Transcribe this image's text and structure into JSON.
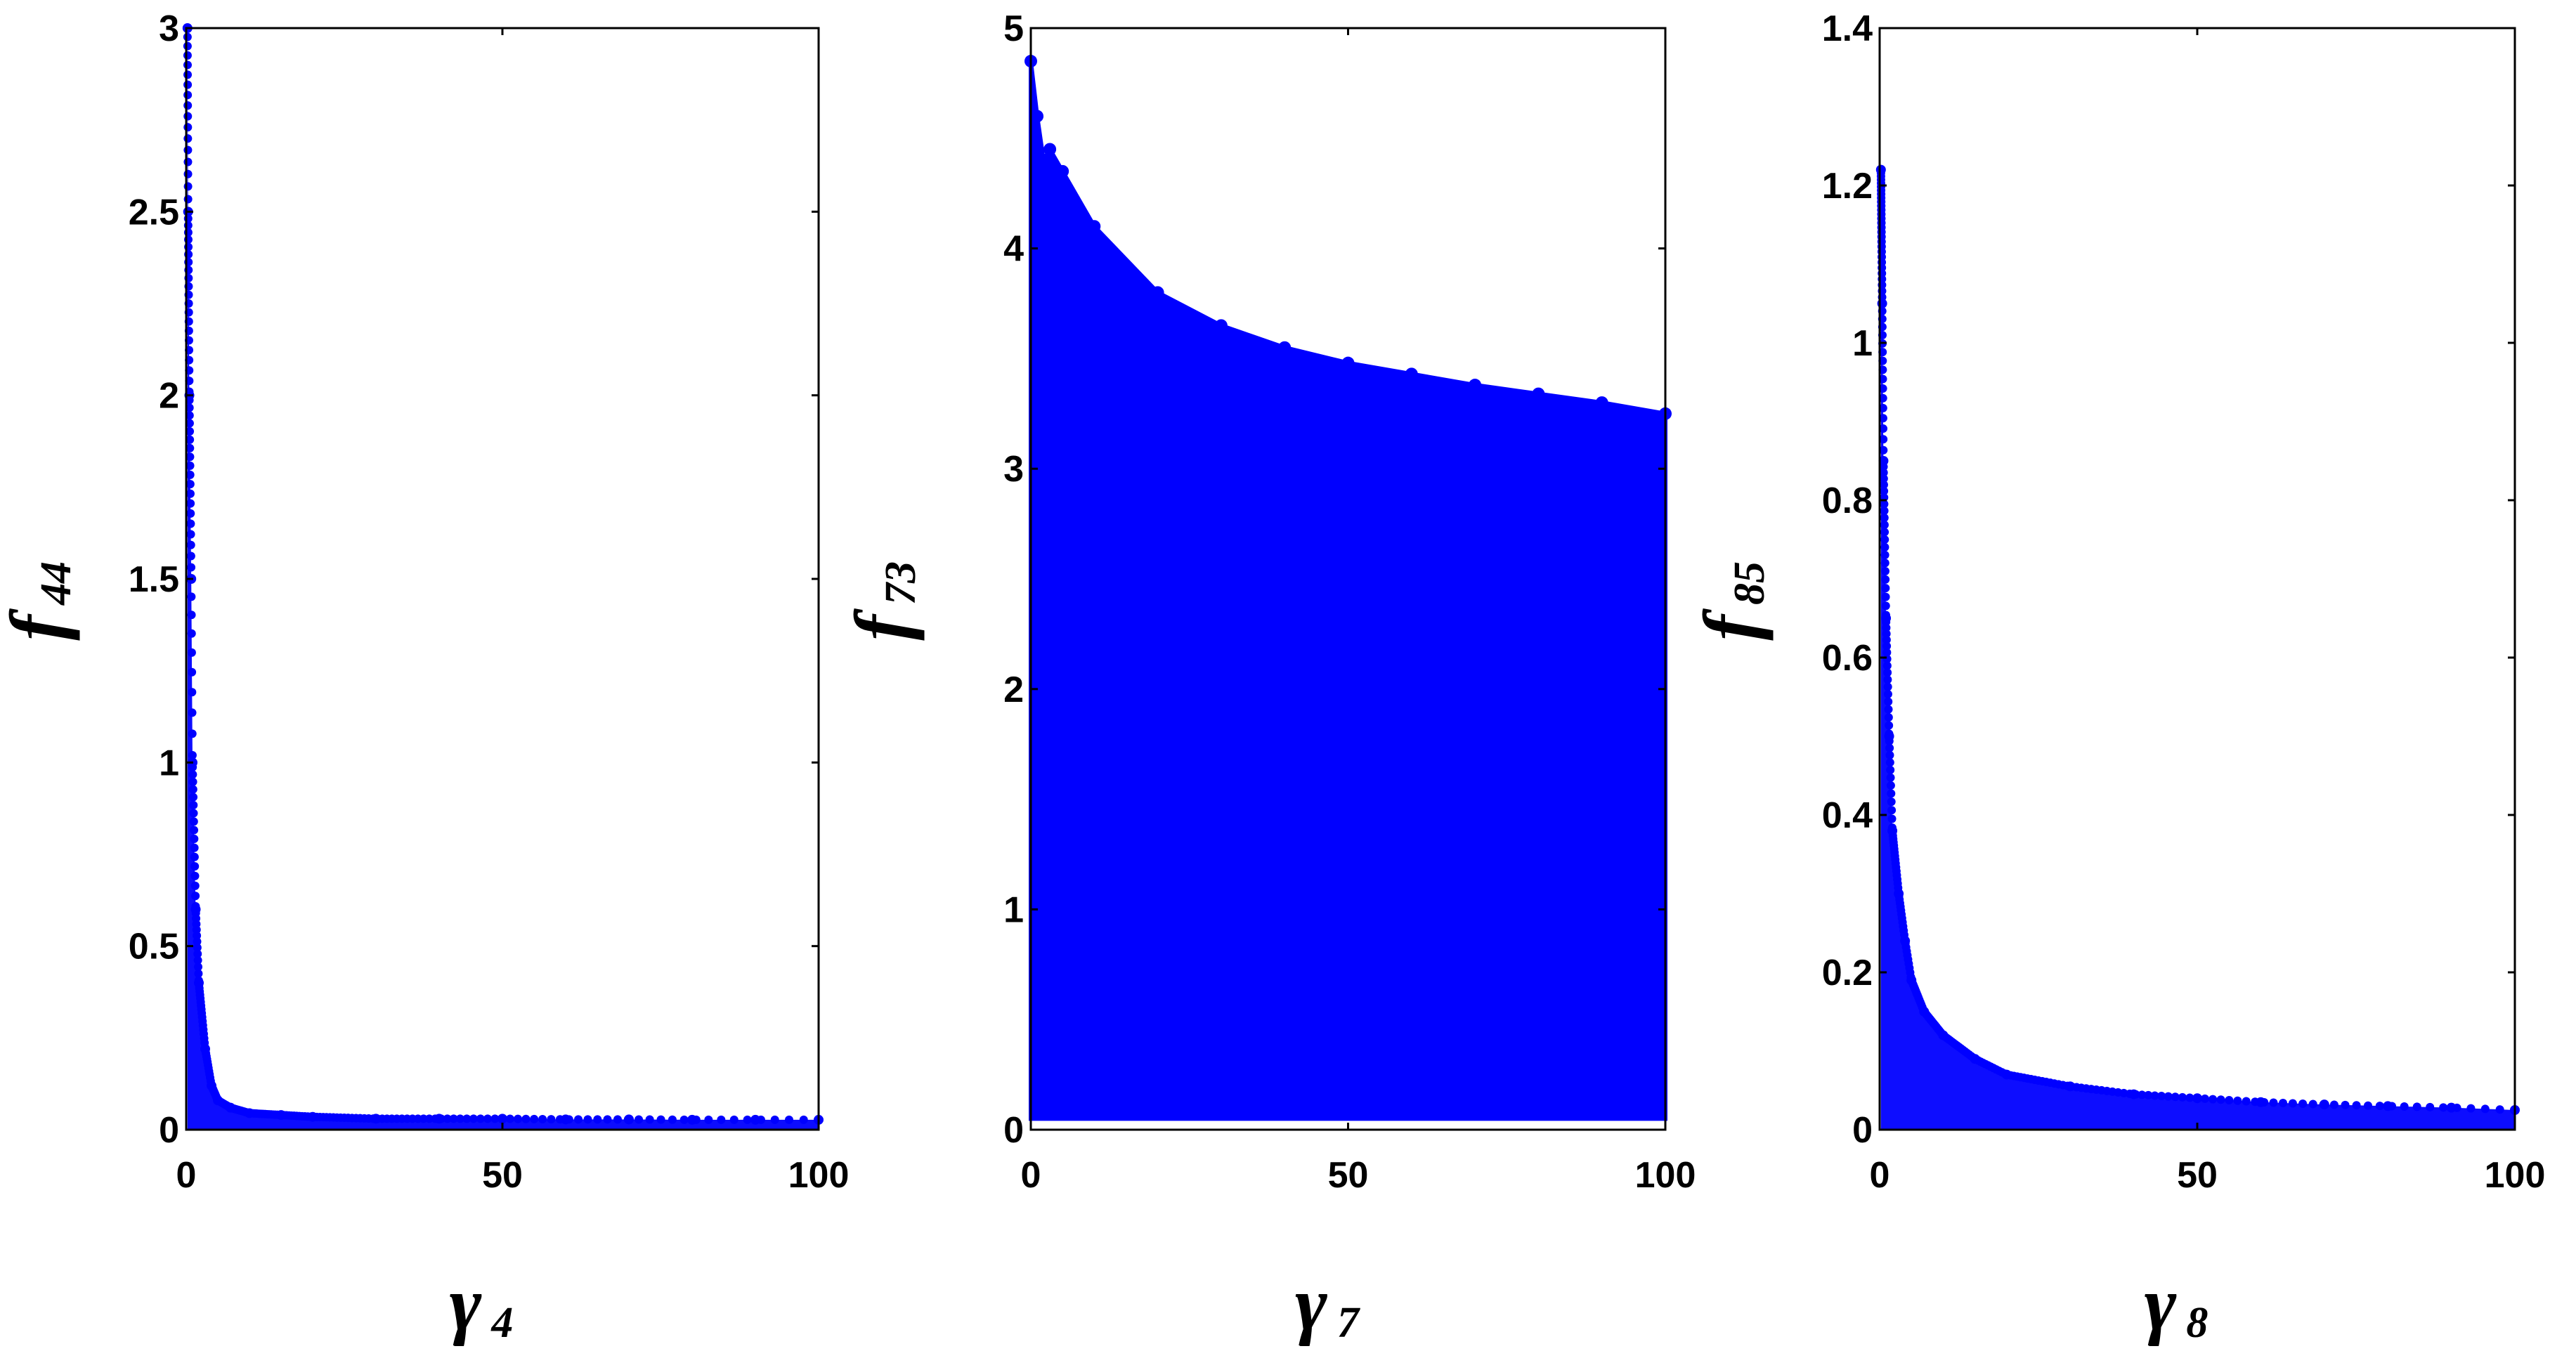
{
  "figure": {
    "background": "#ffffff",
    "marker_color": "#0000ff",
    "axis_color": "#000000"
  },
  "chart_data": [
    {
      "type": "scatter",
      "title": "",
      "xlabel": {
        "symbol": "γ",
        "subscript": "4"
      },
      "ylabel": {
        "symbol": "f",
        "subscript": "44"
      },
      "xlim": [
        0,
        100
      ],
      "ylim": [
        0,
        3
      ],
      "xticks": [
        "0",
        "50",
        "100"
      ],
      "yticks": [
        "0",
        "0.5",
        "1",
        "1.5",
        "2",
        "2.5",
        "3"
      ],
      "grid": false,
      "series": [
        {
          "color": "#0000ff",
          "x": [
            0.2,
            0.3,
            0.5,
            0.8,
            1.0,
            1.5,
            2.0,
            3.0,
            4.0,
            5.0,
            7.0,
            10.0,
            15.0,
            20.0,
            30.0,
            40.0,
            50.0,
            60.0,
            70.0,
            80.0,
            90.0,
            100.0
          ],
          "y": [
            3.0,
            2.5,
            2.0,
            1.5,
            1.0,
            0.6,
            0.4,
            0.22,
            0.12,
            0.08,
            0.06,
            0.045,
            0.04,
            0.035,
            0.03,
            0.03,
            0.03,
            0.028,
            0.028,
            0.027,
            0.027,
            0.027
          ]
        }
      ]
    },
    {
      "type": "scatter",
      "title": "",
      "xlabel": {
        "symbol": "γ",
        "subscript": "7"
      },
      "ylabel": {
        "symbol": "f",
        "subscript": "73"
      },
      "xlim": [
        0,
        100
      ],
      "ylim": [
        0,
        5
      ],
      "xticks": [
        "0",
        "50",
        "100"
      ],
      "yticks": [
        "0",
        "1",
        "2",
        "3",
        "4",
        "5"
      ],
      "grid": false,
      "series": [
        {
          "color": "#0000ff",
          "filled_region": true,
          "lower_bound": 0.05,
          "x": [
            0,
            1,
            2,
            3,
            5,
            10,
            20,
            30,
            40,
            50,
            60,
            70,
            80,
            90,
            100
          ],
          "y": [
            4.85,
            4.6,
            4.4,
            4.45,
            4.35,
            4.1,
            3.8,
            3.65,
            3.55,
            3.48,
            3.43,
            3.38,
            3.34,
            3.3,
            3.25
          ]
        }
      ]
    },
    {
      "type": "scatter",
      "title": "",
      "xlabel": {
        "symbol": "γ",
        "subscript": "8"
      },
      "ylabel": {
        "symbol": "f",
        "subscript": "85"
      },
      "xlim": [
        0,
        100
      ],
      "ylim": [
        0,
        1.4
      ],
      "xticks": [
        "0",
        "50",
        "100"
      ],
      "yticks": [
        "0",
        "0.2",
        "0.4",
        "0.6",
        "0.8",
        "1",
        "1.2",
        "1.4"
      ],
      "grid": false,
      "series": [
        {
          "color": "#0000ff",
          "x": [
            0.2,
            0.4,
            0.6,
            1.0,
            1.5,
            2.0,
            3.0,
            4.0,
            5.0,
            7.0,
            10.0,
            15.0,
            20.0,
            30.0,
            40.0,
            50.0,
            60.0,
            70.0,
            80.0,
            90.0,
            100.0
          ],
          "y": [
            1.22,
            1.05,
            0.85,
            0.65,
            0.5,
            0.38,
            0.3,
            0.24,
            0.19,
            0.15,
            0.12,
            0.09,
            0.07,
            0.055,
            0.045,
            0.04,
            0.035,
            0.032,
            0.03,
            0.028,
            0.025
          ]
        }
      ]
    }
  ]
}
